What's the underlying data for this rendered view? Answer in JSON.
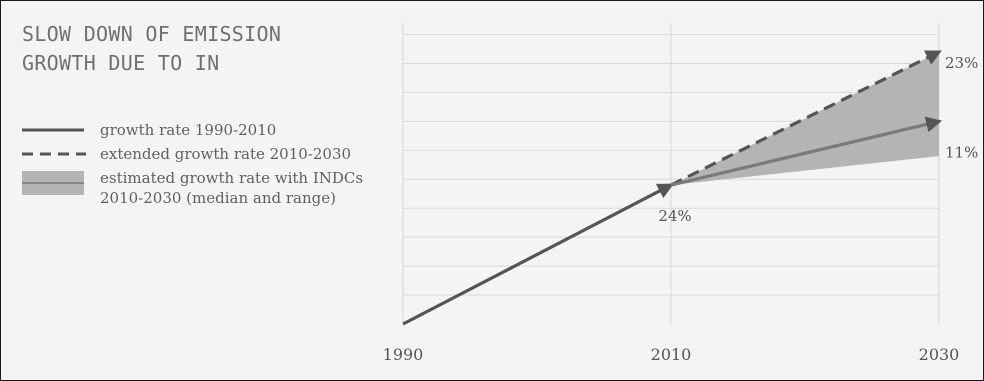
{
  "chart_data": {
    "type": "line",
    "title": "SLOW DOWN OF EMISSION\nGROWTH DUE TO IN",
    "xlabel": "",
    "ylabel": "",
    "x_ticks": [
      "1990",
      "2010",
      "2030"
    ],
    "xlim": [
      1990,
      2030
    ],
    "grid": true,
    "legend_position": "left",
    "colors": {
      "line": "#555555",
      "band": "#b4b4b4",
      "grid": "#d8d8d8",
      "background": "#f4f4f4"
    },
    "legend": [
      {
        "label": "growth rate 1990-2010",
        "style": "solid"
      },
      {
        "label": "extended growth rate 2010-2030",
        "style": "dashed"
      },
      {
        "label": "estimated growth rate with INDCs 2010-2030 (median and range)",
        "style": "band"
      }
    ],
    "series": [
      {
        "style": "solid",
        "points": [
          {
            "x": 1990,
            "y": 0
          },
          {
            "x": 2010,
            "y": 24
          }
        ]
      },
      {
        "style": "dashed",
        "points": [
          {
            "x": 2010,
            "y": 24
          },
          {
            "x": 2030,
            "y": 47
          }
        ]
      },
      {
        "style": "solid",
        "points": [
          {
            "x": 2010,
            "y": 24
          },
          {
            "x": 2030,
            "y": 35
          }
        ]
      }
    ],
    "band": {
      "x": [
        2010,
        2030
      ],
      "lower": [
        24,
        29
      ],
      "upper": [
        24,
        47
      ]
    },
    "annotations": [
      {
        "text": "24%",
        "x": 2010,
        "y": 24,
        "position": "below"
      },
      {
        "text": "23%",
        "x": 2030,
        "y": 47,
        "position": "right"
      },
      {
        "text": "11%",
        "x": 2030,
        "y": 35,
        "position": "right"
      }
    ]
  }
}
